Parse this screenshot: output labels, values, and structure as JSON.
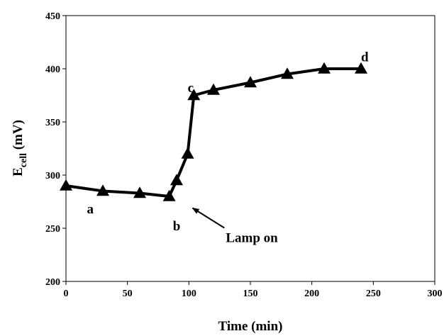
{
  "chart_data": {
    "type": "line",
    "xlabel": "Time (min)",
    "ylabel": {
      "main": "E",
      "subscript": "cell",
      "unit": " (mV)"
    },
    "xlim": [
      0,
      300
    ],
    "ylim": [
      200,
      450
    ],
    "xticks": [
      "0",
      "50",
      "100",
      "150",
      "200",
      "250",
      "300"
    ],
    "yticks": [
      "200",
      "250",
      "300",
      "350",
      "400",
      "450"
    ],
    "grid": false,
    "marker": "triangle",
    "series": [
      {
        "x": [
          0,
          30,
          60,
          84,
          90,
          99,
          104,
          120,
          150,
          180,
          210,
          240
        ],
        "y": [
          290,
          285,
          283,
          280,
          295,
          320,
          375,
          380,
          387,
          395,
          400,
          400
        ]
      }
    ],
    "annotations": [
      {
        "text": "a",
        "x": 17,
        "y": 264
      },
      {
        "text": "b",
        "x": 87,
        "y": 248
      },
      {
        "text": "c",
        "x": 99,
        "y": 378
      },
      {
        "text": "d",
        "x": 240,
        "y": 407
      },
      {
        "text": "Lamp on",
        "x": 130,
        "y": 237,
        "arrow_to": [
          103,
          269
        ]
      }
    ]
  }
}
